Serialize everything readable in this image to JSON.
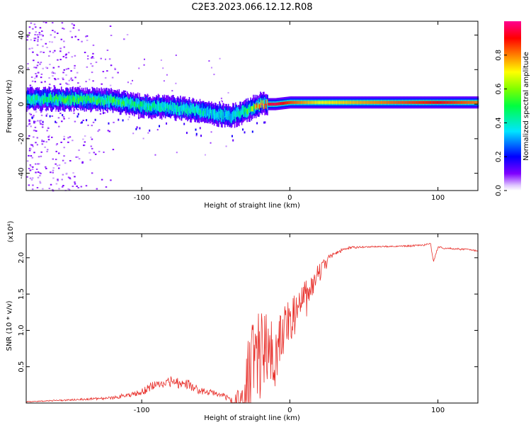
{
  "title": "C2E3.2023.066.12.12.R08",
  "chart_data": [
    {
      "type": "heatmap",
      "xlabel": "Height of straight line (km)",
      "ylabel": "Frequency (Hz)",
      "xlim": [
        -178,
        127
      ],
      "ylim": [
        -50,
        48
      ],
      "xticks": [
        -100,
        0,
        100
      ],
      "yticks": [
        -40,
        -20,
        0,
        20,
        40
      ],
      "colorbar": {
        "label": "Normalized spectral amplitude",
        "range": [
          0,
          1
        ],
        "ticks": [
          "0.0",
          "0.2",
          "0.4",
          "0.6",
          "0.8"
        ],
        "colormap": [
          "#ffffff",
          "#d9b3ff",
          "#8000ff",
          "#0000ff",
          "#00e5ff",
          "#00ff00",
          "#ffff00",
          "#ff8000",
          "#ff0000",
          "#ff00aa"
        ]
      },
      "ridge": {
        "x": [
          -178,
          -150,
          -120,
          -100,
          -80,
          -60,
          -40,
          -30,
          -20,
          -10,
          0,
          20,
          40,
          60,
          80,
          100,
          127
        ],
        "freq_hz": [
          3,
          3,
          2,
          -1,
          -2,
          -4,
          -7,
          -4,
          0,
          0,
          1,
          1,
          1,
          1,
          1,
          1,
          1
        ],
        "amplitude": [
          0.45,
          0.5,
          0.5,
          0.45,
          0.4,
          0.4,
          0.35,
          0.5,
          0.9,
          0.95,
          0.85,
          0.7,
          0.75,
          0.8,
          0.85,
          0.9,
          0.8
        ]
      }
    },
    {
      "type": "line",
      "xlabel": "Height of straight line (km)",
      "ylabel": "SNR (10 * v/v)",
      "y_multiplier": "(x10⁴)",
      "xlim": [
        -178,
        127
      ],
      "ylim": [
        0,
        2.33
      ],
      "xticks": [
        -100,
        0,
        100
      ],
      "yticks": [
        0.5,
        1.0,
        1.5,
        2.0
      ],
      "ytick_labels": [
        "0.5",
        "1.0",
        "1.5",
        "2.0"
      ],
      "color": "#e8312c",
      "envelope": {
        "x": [
          -178,
          -150,
          -120,
          -100,
          -90,
          -80,
          -70,
          -60,
          -50,
          -40,
          -35,
          -30,
          -25,
          -20,
          -15,
          -10,
          -5,
          0,
          5,
          10,
          15,
          20,
          25,
          30,
          40,
          60,
          80,
          90,
          95,
          97,
          100,
          110,
          120,
          127
        ],
        "y": [
          0.02,
          0.05,
          0.08,
          0.18,
          0.3,
          0.35,
          0.3,
          0.2,
          0.15,
          0.1,
          0.15,
          0.6,
          1.0,
          1.3,
          1.2,
          1.1,
          1.3,
          1.4,
          1.45,
          1.6,
          1.7,
          1.9,
          2.0,
          2.08,
          2.15,
          2.16,
          2.17,
          2.18,
          2.2,
          1.95,
          2.15,
          2.13,
          2.12,
          2.1
        ]
      },
      "noise": {
        "x": [
          -178,
          -130,
          -110,
          -90,
          -80,
          -60,
          -45,
          -38,
          -30,
          -20,
          -10,
          0,
          10,
          20,
          30,
          50,
          127
        ],
        "amp": [
          0.01,
          0.03,
          0.06,
          0.12,
          0.14,
          0.1,
          0.05,
          0.15,
          0.6,
          0.8,
          0.55,
          0.35,
          0.3,
          0.15,
          0.05,
          0.02,
          0.02
        ]
      }
    }
  ]
}
